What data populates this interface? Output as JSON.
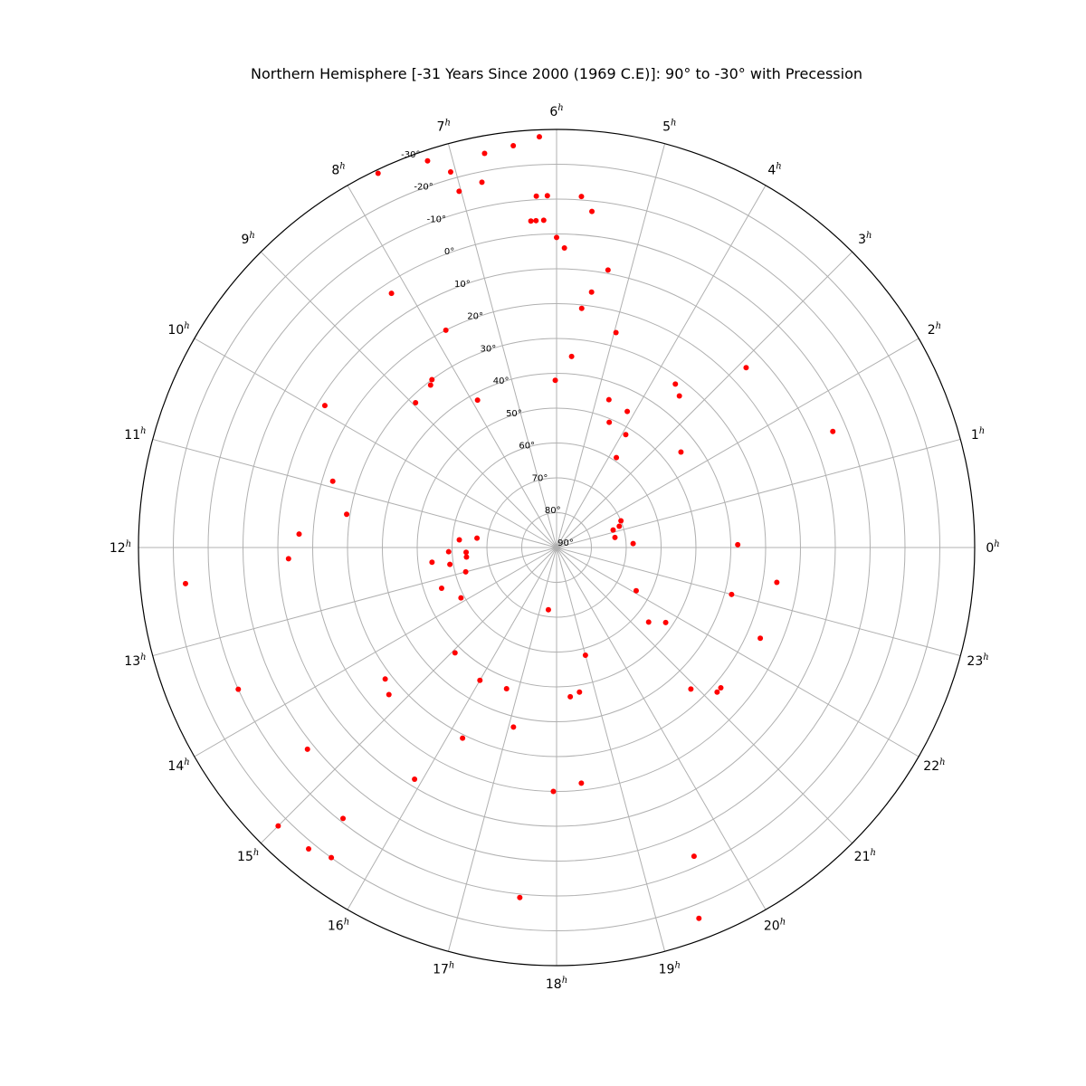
{
  "chart_data": {
    "type": "scatter",
    "projection": "polar",
    "title": "Northern Hemisphere [-31 Years Since 2000 (1969 C.E)]: 90° to -30° with Precession",
    "angular_axis": {
      "unit": "h",
      "tick_labels": [
        "0",
        "1",
        "2",
        "3",
        "4",
        "5",
        "6",
        "7",
        "8",
        "9",
        "10",
        "11",
        "12",
        "13",
        "14",
        "15",
        "16",
        "17",
        "18",
        "19",
        "20",
        "21",
        "22",
        "23"
      ],
      "direction": "counterclockwise",
      "zero_location": "right"
    },
    "radial_axis": {
      "tick_labels": [
        "90°",
        "80°",
        "70°",
        "60°",
        "50°",
        "40°",
        "30°",
        "20°",
        "10°",
        "0°",
        "-10°",
        "-20°",
        "-30°"
      ],
      "range": [
        90,
        -30
      ]
    },
    "grid": true,
    "marker_color": "#ff0000",
    "points": [
      {
        "ra": 6.16,
        "dec": -28
      },
      {
        "ra": 6.41,
        "dec": -26
      },
      {
        "ra": 6.69,
        "dec": -25
      },
      {
        "ra": 7.23,
        "dec": -27
      },
      {
        "ra": 7.7,
        "dec": -29
      },
      {
        "ra": 6.22,
        "dec": -11
      },
      {
        "ra": 6.1,
        "dec": -11
      },
      {
        "ra": 5.73,
        "dec": -11
      },
      {
        "ra": 5.6,
        "dec": -7
      },
      {
        "ra": 6.3,
        "dec": -4
      },
      {
        "ra": 6.24,
        "dec": -4
      },
      {
        "ra": 6.15,
        "dec": -4
      },
      {
        "ra": 5.9,
        "dec": 4
      },
      {
        "ra": 6.0,
        "dec": 1
      },
      {
        "ra": 6.77,
        "dec": -17
      },
      {
        "ra": 7.05,
        "dec": -22
      },
      {
        "ra": 7.02,
        "dec": -16
      },
      {
        "ra": 5.48,
        "dec": 16
      },
      {
        "ra": 5.3,
        "dec": 9
      },
      {
        "ra": 5.6,
        "dec": 21
      },
      {
        "ra": 4.97,
        "dec": 26
      },
      {
        "ra": 6.03,
        "dec": 42
      },
      {
        "ra": 5.7,
        "dec": 35
      },
      {
        "ra": 4.7,
        "dec": 45
      },
      {
        "ra": 4.17,
        "dec": 46
      },
      {
        "ra": 4.48,
        "dec": 51
      },
      {
        "ra": 3.76,
        "dec": 59
      },
      {
        "ra": 3.9,
        "dec": 52
      },
      {
        "ra": 3.6,
        "dec": 32
      },
      {
        "ra": 3.4,
        "dec": 34
      },
      {
        "ra": 2.9,
        "dec": 15
      },
      {
        "ra": 1.52,
        "dec": 4
      },
      {
        "ra": 2.5,
        "dec": 45
      },
      {
        "ra": 1.15,
        "dec": 73
      },
      {
        "ra": 1.5,
        "dec": 70
      },
      {
        "ra": 1.25,
        "dec": 71
      },
      {
        "ra": 0.65,
        "dec": 73
      },
      {
        "ra": 0.2,
        "dec": 68
      },
      {
        "ra": 0.06,
        "dec": 38
      },
      {
        "ra": 23.0,
        "dec": 38
      },
      {
        "ra": 23.4,
        "dec": 26
      },
      {
        "ra": 22.4,
        "dec": 26
      },
      {
        "ra": 21.3,
        "dec": 28
      },
      {
        "ra": 21.2,
        "dec": 28
      },
      {
        "ra": 22.1,
        "dec": 64
      },
      {
        "ra": 21.4,
        "dec": 56
      },
      {
        "ra": 21.7,
        "dec": 52
      },
      {
        "ra": 20.9,
        "dec": 34
      },
      {
        "ra": 19.6,
        "dec": -7
      },
      {
        "ra": 19.4,
        "dec": -24
      },
      {
        "ra": 19.0,
        "dec": 58
      },
      {
        "ra": 18.35,
        "dec": 47
      },
      {
        "ra": 18.6,
        "dec": 48
      },
      {
        "ra": 17.5,
        "dec": 72
      },
      {
        "ra": 17.95,
        "dec": 20
      },
      {
        "ra": 18.4,
        "dec": 22
      },
      {
        "ra": 17.6,
        "dec": -11
      },
      {
        "ra": 17.1,
        "dec": 37
      },
      {
        "ra": 16.7,
        "dec": 47
      },
      {
        "ra": 16.0,
        "dec": 46
      },
      {
        "ra": 16.25,
        "dec": 29
      },
      {
        "ra": 15.9,
        "dec": 12
      },
      {
        "ra": 15.45,
        "dec": -9
      },
      {
        "ra": 15.6,
        "dec": -20
      },
      {
        "ra": 15.37,
        "dec": -22
      },
      {
        "ra": 15.0,
        "dec": -23
      },
      {
        "ra": 14.6,
        "dec": -2
      },
      {
        "ra": 14.75,
        "dec": 26
      },
      {
        "ra": 14.5,
        "dec": 28
      },
      {
        "ra": 13.6,
        "dec": -10
      },
      {
        "ra": 15.07,
        "dec": 48
      },
      {
        "ra": 13.85,
        "dec": 59
      },
      {
        "ra": 13.3,
        "dec": 55
      },
      {
        "ra": 13.0,
        "dec": 63
      },
      {
        "ra": 12.6,
        "dec": 59
      },
      {
        "ra": 12.4,
        "dec": 64
      },
      {
        "ra": 12.45,
        "dec": 54
      },
      {
        "ra": 12.15,
        "dec": 59
      },
      {
        "ra": 12.2,
        "dec": 64
      },
      {
        "ra": 11.55,
        "dec": 67
      },
      {
        "ra": 11.7,
        "dec": 62
      },
      {
        "ra": 12.37,
        "dec": -17
      },
      {
        "ra": 12.16,
        "dec": 13
      },
      {
        "ra": 11.4,
        "dec": 29
      },
      {
        "ra": 10.9,
        "dec": 23
      },
      {
        "ra": 11.8,
        "dec": 16
      },
      {
        "ra": 9.9,
        "dec": 12
      },
      {
        "ra": 8.52,
        "dec": 31
      },
      {
        "ra": 8.44,
        "dec": 30
      },
      {
        "ra": 8.95,
        "dec": 32
      },
      {
        "ra": 7.8,
        "dec": 20
      },
      {
        "ra": 8.2,
        "dec": 3
      },
      {
        "ra": 7.88,
        "dec": 42
      }
    ]
  }
}
